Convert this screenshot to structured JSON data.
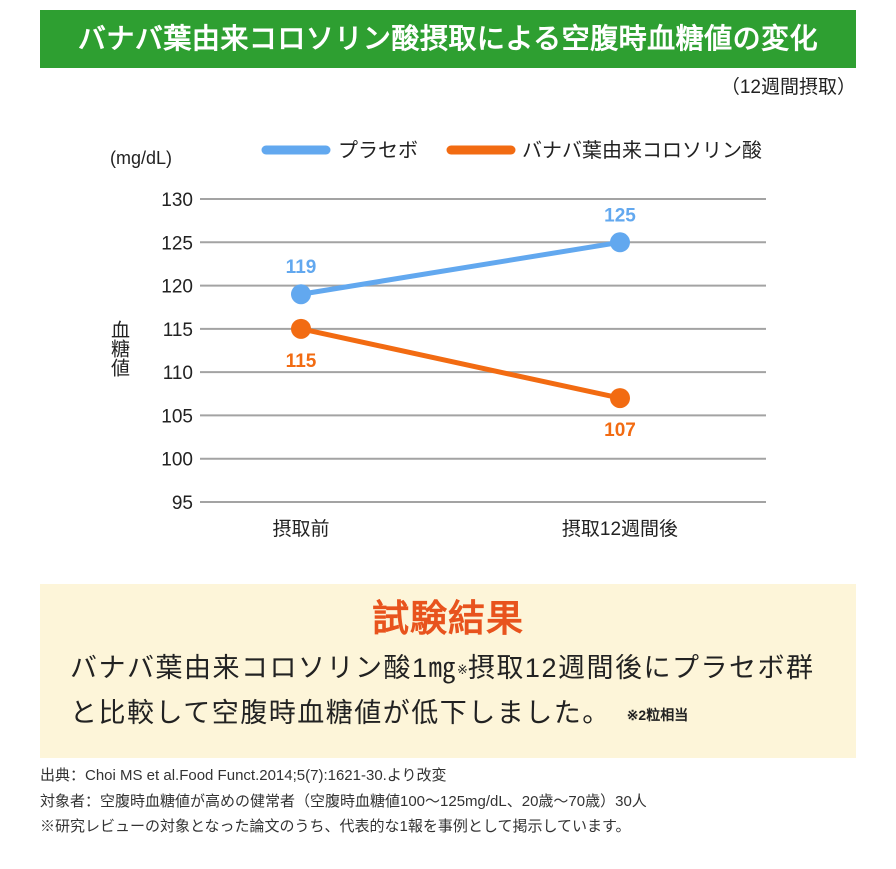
{
  "chart_data": {
    "type": "line",
    "title": "バナバ葉由来コロソリン酸摂取による空腹時血糖値の変化",
    "subtitle": "（12週間摂取）",
    "categories": [
      "摂取前",
      "摂取12週間後"
    ],
    "series": [
      {
        "name": "プラセボ",
        "values": [
          119,
          125
        ],
        "color": "#62a8ef"
      },
      {
        "name": "バナバ葉由来コロソリン酸",
        "values": [
          115,
          107
        ],
        "color": "#f26b12"
      }
    ],
    "ylabel": "血糖値",
    "yunit": "(mg/dL)",
    "ylim": [
      95,
      130
    ],
    "yticks": [
      130,
      125,
      120,
      115,
      110,
      105,
      100,
      95
    ],
    "grid": true,
    "legend": "top"
  },
  "result": {
    "heading": "試験結果",
    "line1_main": "バナバ葉由来コロソリン酸1㎎",
    "line1_mark": "※",
    "line1_rest": "摂取12週間後にプラセボ群",
    "line2": "と比較して空腹時血糖値が低下しました。",
    "line2_note": "※2粒相当"
  },
  "notes": [
    "出典：Choi MS et al.Food Funct.2014;5(7):1621-30.より改変",
    "対象者：空腹時血糖値が高めの健常者（空腹時血糖値100〜125mg/dL、20歳〜70歳）30人",
    "※研究レビューの対象となった論文のうち、代表的な1報を事例として掲示しています。"
  ],
  "theme": {
    "header_bg": "#2e9f31",
    "result_bg": "#fdf5d9",
    "result_heading": "#e8531d",
    "gridline": "#a3a3a3"
  }
}
